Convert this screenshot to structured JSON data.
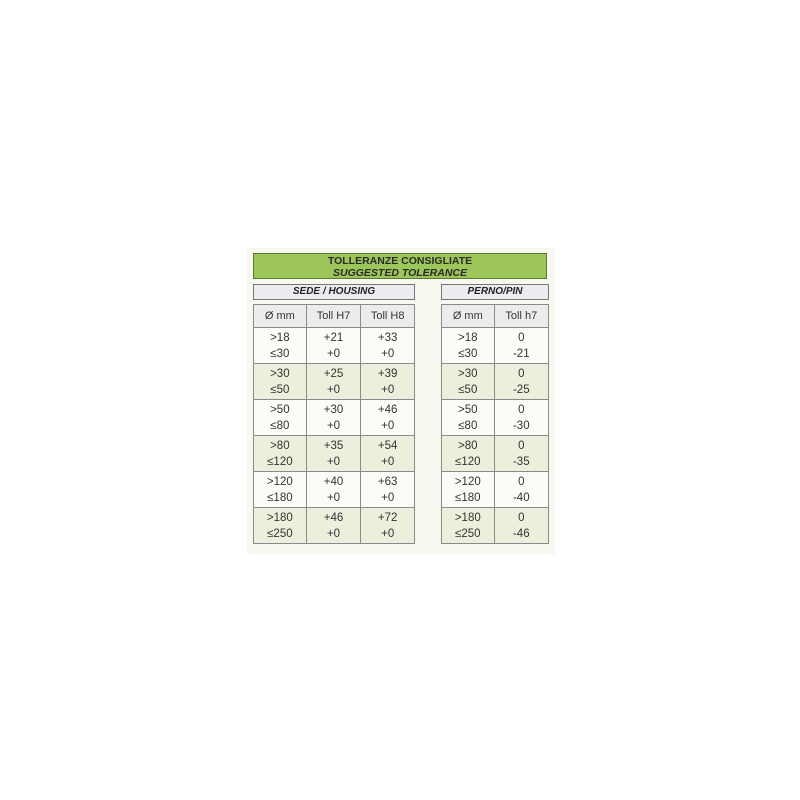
{
  "title": {
    "line1": "TOLLERANZE CONSIGLIATE",
    "line2": "SUGGESTED TOLERANCE"
  },
  "colors": {
    "title_bg": "#9cc65a",
    "alt_row": "#eaf0dc"
  },
  "housing": {
    "label": "SEDE / HOUSING",
    "headers": [
      "Ø mm",
      "Toll H7",
      "Toll H8"
    ],
    "rows": [
      [
        ">18\n≤30",
        "+21\n+0",
        "+33\n+0"
      ],
      [
        ">30\n≤50",
        "+25\n+0",
        "+39\n+0"
      ],
      [
        ">50\n≤80",
        "+30\n+0",
        "+46\n+0"
      ],
      [
        ">80\n≤120",
        "+35\n+0",
        "+54\n+0"
      ],
      [
        ">120\n≤180",
        "+40\n+0",
        "+63\n+0"
      ],
      [
        ">180\n≤250",
        "+46\n+0",
        "+72\n+0"
      ]
    ]
  },
  "pin": {
    "label": "PERNO/PIN",
    "headers": [
      "Ø mm",
      "Toll h7"
    ],
    "rows": [
      [
        ">18\n≤30",
        "0\n-21"
      ],
      [
        ">30\n≤50",
        "0\n-25"
      ],
      [
        ">50\n≤80",
        "0\n-30"
      ],
      [
        ">80\n≤120",
        "0\n-35"
      ],
      [
        ">120\n≤180",
        "0\n-40"
      ],
      [
        ">180\n≤250",
        "0\n-46"
      ]
    ]
  }
}
